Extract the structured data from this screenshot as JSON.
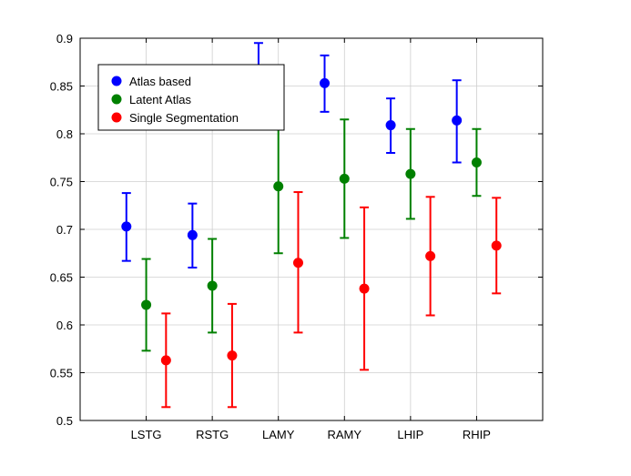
{
  "chart_data": {
    "type": "scatter",
    "categories": [
      "LSTG",
      "RSTG",
      "LAMY",
      "RAMY",
      "LHIP",
      "RHIP"
    ],
    "ylim": [
      0.5,
      0.9
    ],
    "yticks": [
      "0.5",
      "0.55",
      "0.6",
      "0.65",
      "0.7",
      "0.75",
      "0.8",
      "0.85",
      "0.9"
    ],
    "grid": true,
    "legend_position": "top-left",
    "series": [
      {
        "name": "Atlas based",
        "color": "#0000ff",
        "values": [
          0.703,
          0.694,
          0.867,
          0.853,
          0.809,
          0.814
        ],
        "lower": [
          0.667,
          0.66,
          0.84,
          0.823,
          0.78,
          0.77
        ],
        "upper": [
          0.738,
          0.727,
          0.895,
          0.882,
          0.837,
          0.856
        ]
      },
      {
        "name": "Latent Atlas",
        "color": "#008000",
        "values": [
          0.621,
          0.641,
          0.745,
          0.753,
          0.758,
          0.77
        ],
        "lower": [
          0.573,
          0.592,
          0.675,
          0.691,
          0.711,
          0.735
        ],
        "upper": [
          0.669,
          0.69,
          0.813,
          0.815,
          0.805,
          0.805
        ]
      },
      {
        "name": "Single Segmentation",
        "color": "#ff0000",
        "values": [
          0.563,
          0.568,
          0.665,
          0.638,
          0.672,
          0.683
        ],
        "lower": [
          0.514,
          0.514,
          0.592,
          0.553,
          0.61,
          0.633
        ],
        "upper": [
          0.612,
          0.622,
          0.739,
          0.723,
          0.734,
          0.733
        ]
      }
    ]
  }
}
